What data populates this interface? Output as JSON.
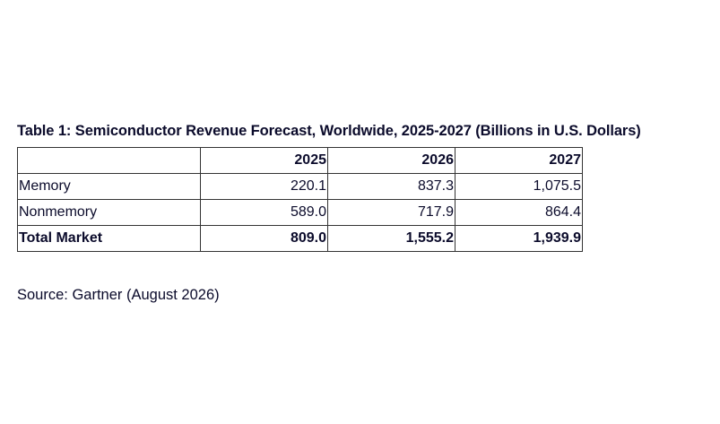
{
  "title": "Table 1: Semiconductor Revenue Forecast, Worldwide, 2025-2027 (Billions in U.S. Dollars)",
  "table": {
    "header": [
      "",
      "2025",
      "2026",
      "2027"
    ],
    "rows": [
      {
        "label": "Memory",
        "values": [
          "220.1",
          "837.3",
          "1,075.5"
        ]
      },
      {
        "label": "Nonmemory",
        "values": [
          "589.0",
          "717.9",
          "864.4"
        ]
      },
      {
        "label": "Total Market",
        "values": [
          "809.0",
          "1,555.2",
          "1,939.9"
        ]
      }
    ]
  },
  "source": "Source: Gartner (August 2026)"
}
